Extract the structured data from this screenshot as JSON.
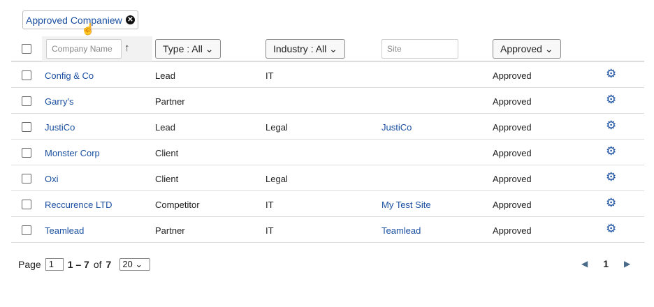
{
  "filter_chip": {
    "label": "Approved Companiew"
  },
  "header": {
    "company_placeholder": "Company Name",
    "type_filter": "Type : All",
    "industry_filter": "Industry : All",
    "site_placeholder": "Site",
    "status_filter": "Approved"
  },
  "rows": [
    {
      "name": "Config & Co",
      "type": "Lead",
      "industry": "IT",
      "site": "",
      "status": "Approved"
    },
    {
      "name": "Garry's",
      "type": "Partner",
      "industry": "",
      "site": "",
      "status": "Approved"
    },
    {
      "name": "JustiCo",
      "type": "Lead",
      "industry": "Legal",
      "site": "JustiCo",
      "status": "Approved"
    },
    {
      "name": "Monster Corp",
      "type": "Client",
      "industry": "",
      "site": "",
      "status": "Approved"
    },
    {
      "name": "Oxi",
      "type": "Client",
      "industry": "Legal",
      "site": "",
      "status": "Approved"
    },
    {
      "name": "Reccurence LTD",
      "type": "Competitor",
      "industry": "IT",
      "site": "My Test Site",
      "status": "Approved"
    },
    {
      "name": "Teamlead",
      "type": "Partner",
      "industry": "IT",
      "site": "Teamlead",
      "status": "Approved"
    }
  ],
  "footer": {
    "page_label": "Page",
    "page_value": "1",
    "range": "1 – 7",
    "of": "of",
    "total": "7",
    "page_size": "20",
    "current_page": "1"
  }
}
